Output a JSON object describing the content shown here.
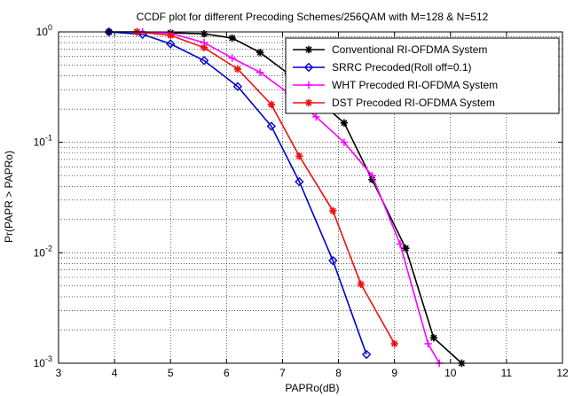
{
  "chart_data": {
    "type": "line",
    "title": "CCDF plot for different Precoding Schemes/256QAM with M=128 & N=512",
    "xlabel": "PAPRo(dB)",
    "ylabel": "Pr(PAPR > PAPRo)",
    "xlim": [
      3,
      12
    ],
    "ylim": [
      0.001,
      1
    ],
    "yscale": "log",
    "grid": true,
    "legend_position": "top-right",
    "xticks": [
      "3",
      "4",
      "5",
      "6",
      "7",
      "8",
      "9",
      "10",
      "11",
      "12"
    ],
    "yticks": [
      {
        "value": 1,
        "base": "10",
        "exp": "0"
      },
      {
        "value": 0.1,
        "base": "10",
        "exp": "-1"
      },
      {
        "value": 0.01,
        "base": "10",
        "exp": "-2"
      },
      {
        "value": 0.001,
        "base": "10",
        "exp": "-3"
      }
    ],
    "series": [
      {
        "name": "Conventional RI-OFDMA System",
        "color": "#000000",
        "marker": "star",
        "x": [
          3.9,
          4.4,
          5.0,
          5.6,
          6.1,
          6.6,
          7.1,
          7.6,
          8.1,
          8.6,
          9.2,
          9.7,
          10.2
        ],
        "y": [
          1.0,
          1.0,
          0.98,
          0.96,
          0.88,
          0.65,
          0.42,
          0.25,
          0.15,
          0.046,
          0.011,
          0.0017,
          0.001
        ]
      },
      {
        "name": "SRRC Precoded(Roll off=0.1)",
        "color": "#0000cc",
        "marker": "diamond",
        "x": [
          3.9,
          4.5,
          5.0,
          5.6,
          6.2,
          6.8,
          7.3,
          7.9,
          8.5
        ],
        "y": [
          1.0,
          0.95,
          0.78,
          0.55,
          0.32,
          0.14,
          0.044,
          0.0085,
          0.0012
        ]
      },
      {
        "name": "WHT Precoded RI-OFDMA System",
        "color": "#ff00ff",
        "marker": "plus",
        "x": [
          4.5,
          5.0,
          5.6,
          6.1,
          6.6,
          7.1,
          7.6,
          8.1,
          8.6,
          9.1,
          9.6,
          9.8
        ],
        "y": [
          1.0,
          0.97,
          0.8,
          0.58,
          0.43,
          0.28,
          0.17,
          0.1,
          0.05,
          0.012,
          0.0015,
          0.001
        ]
      },
      {
        "name": "DST Precoded RI-OFDMA System",
        "color": "#ee1111",
        "marker": "star",
        "x": [
          4.4,
          5.0,
          5.6,
          6.2,
          6.8,
          7.3,
          7.9,
          8.4,
          9.0
        ],
        "y": [
          1.0,
          0.93,
          0.72,
          0.46,
          0.22,
          0.075,
          0.024,
          0.0052,
          0.0015
        ]
      }
    ]
  }
}
